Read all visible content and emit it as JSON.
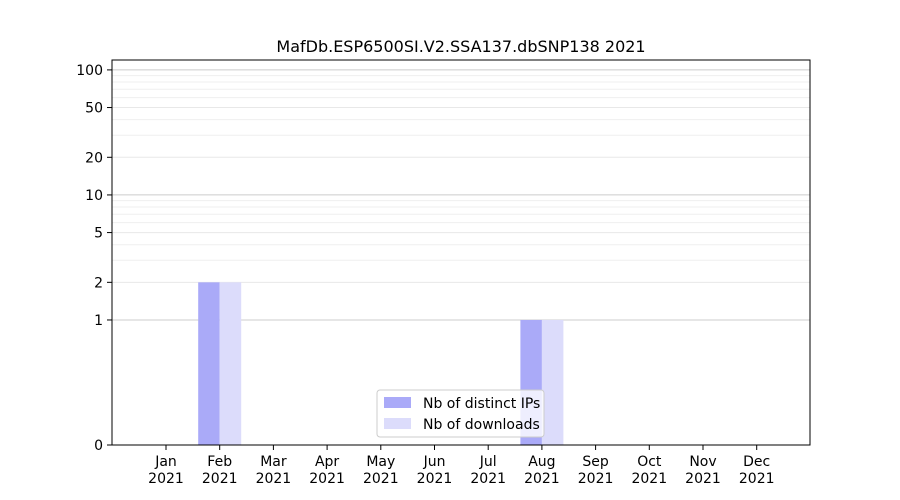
{
  "chart_data": {
    "type": "bar",
    "title": "MafDb.ESP6500SI.V2.SSA137.dbSNP138 2021",
    "xlabel": "",
    "ylabel": "",
    "yscale": "symlog",
    "ylim": [
      0,
      120
    ],
    "yticks": [
      0,
      1,
      2,
      5,
      10,
      20,
      50,
      100
    ],
    "categories": [
      "Jan\n2021",
      "Feb\n2021",
      "Mar\n2021",
      "Apr\n2021",
      "May\n2021",
      "Jun\n2021",
      "Jul\n2021",
      "Aug\n2021",
      "Sep\n2021",
      "Oct\n2021",
      "Nov\n2021",
      "Dec\n2021"
    ],
    "series": [
      {
        "name": "Nb of distinct IPs",
        "color": "#aaaaf8",
        "values": [
          0,
          2,
          0,
          0,
          0,
          0,
          0,
          1,
          0,
          0,
          0,
          0
        ]
      },
      {
        "name": "Nb of downloads",
        "color": "#dcdcfb",
        "values": [
          0,
          2,
          0,
          0,
          0,
          0,
          0,
          1,
          0,
          0,
          0,
          0
        ]
      }
    ],
    "grid": true,
    "legend_position": "bottom-center"
  }
}
